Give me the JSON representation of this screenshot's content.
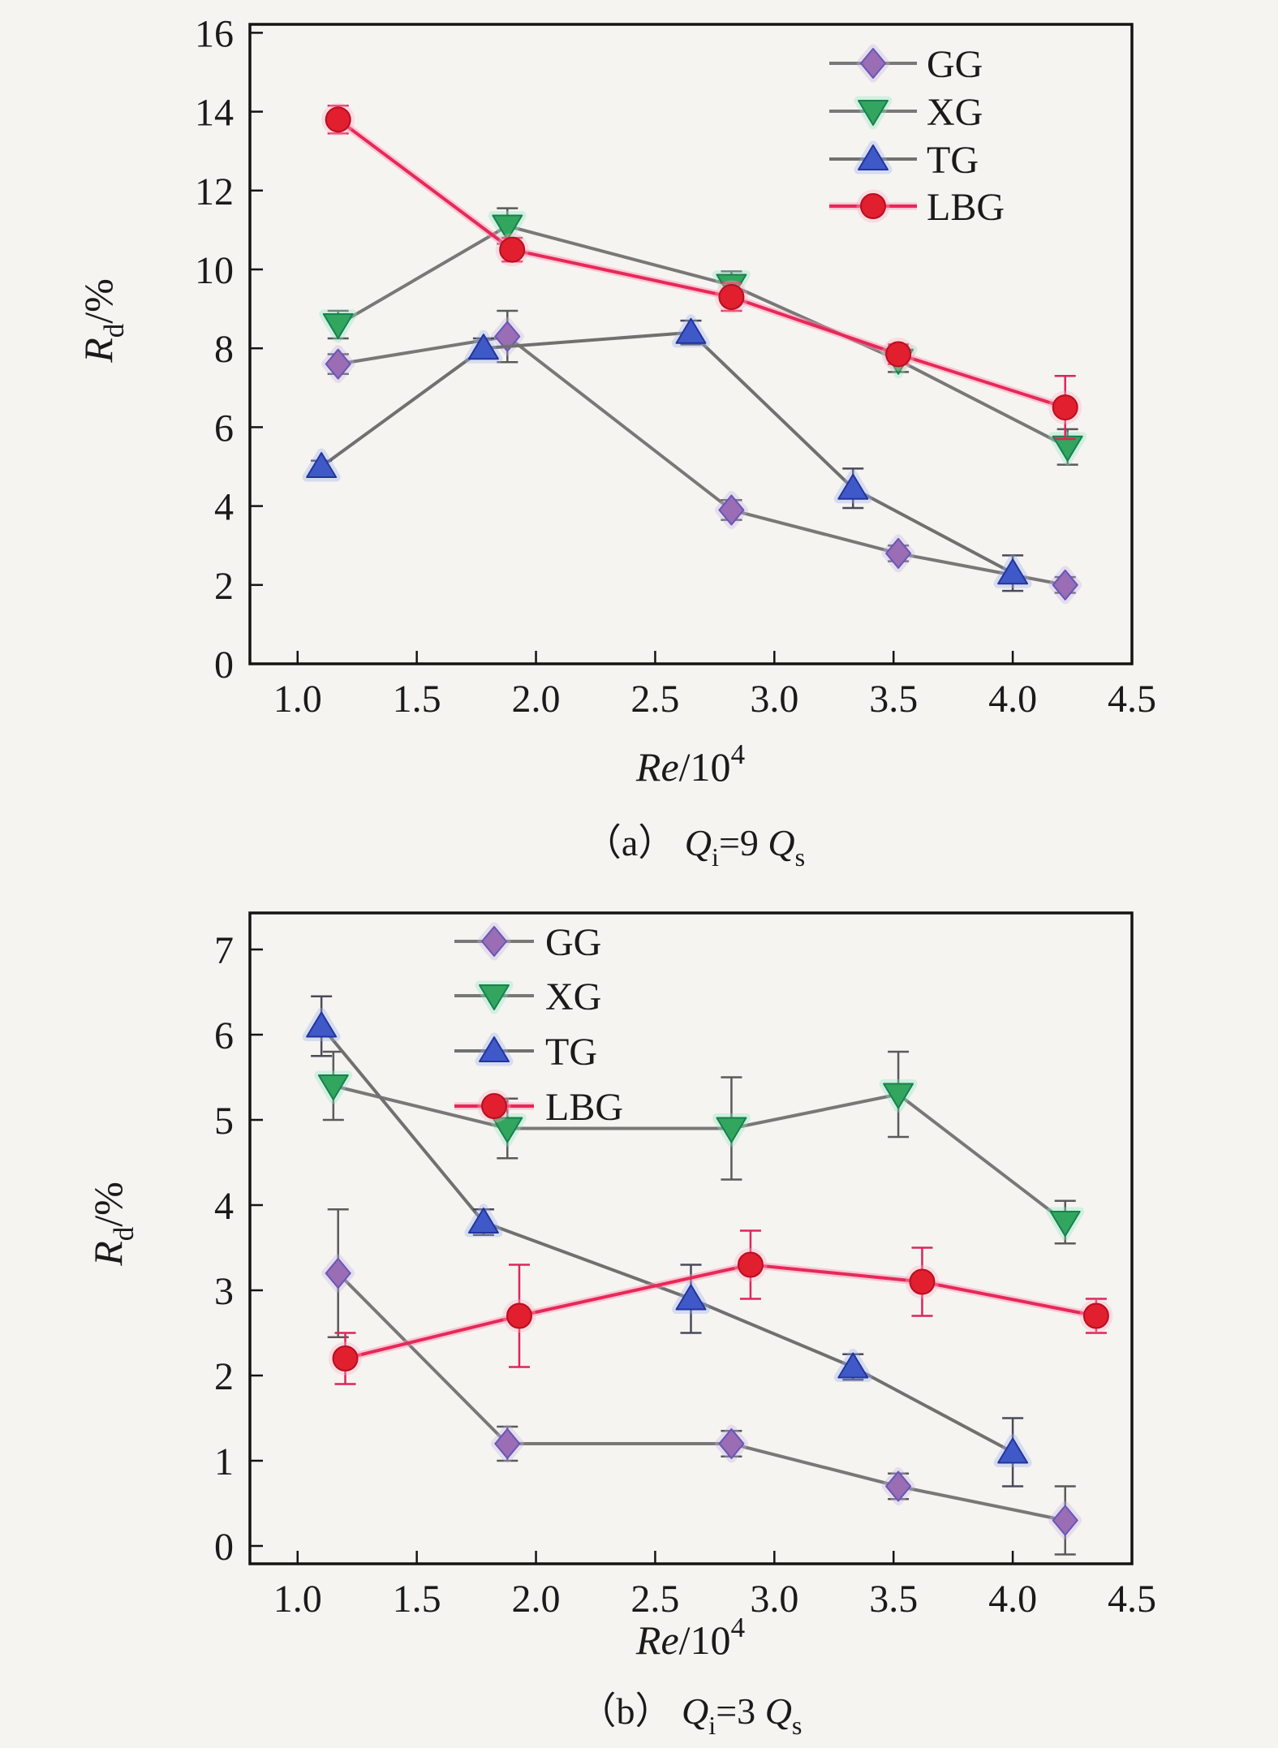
{
  "page": {
    "background": "#f5f4f1",
    "frame_color": "#141414",
    "tick_color": "#141414",
    "text_color": "#1a1a1a"
  },
  "chart_data": [
    {
      "id": "a",
      "type": "line",
      "caption_text": "（a） Qi=9 Qs",
      "caption_parts": [
        {
          "text": "（a） "
        },
        {
          "text": "Q",
          "italic": true
        },
        {
          "text": "i",
          "sub": true
        },
        {
          "text": "=9 "
        },
        {
          "text": "Q",
          "italic": true
        },
        {
          "text": "s",
          "sub": true
        }
      ],
      "xlabel": "Re/10⁴",
      "xlabel_parts": [
        {
          "text": "Re",
          "italic": true
        },
        {
          "text": "/10"
        },
        {
          "text": "4",
          "sup": true
        }
      ],
      "ylabel": "Rd/%",
      "ylabel_parts": [
        {
          "text": "R",
          "italic": true
        },
        {
          "text": "d",
          "sub": true
        },
        {
          "text": "/%"
        }
      ],
      "xlim": [
        0.8,
        4.5
      ],
      "ylim": [
        0,
        16.2
      ],
      "x_ticks": [
        "1.0",
        "1.5",
        "2.0",
        "2.5",
        "3.0",
        "3.5",
        "4.0",
        "4.5"
      ],
      "y_ticks": [
        "0",
        "2",
        "4",
        "6",
        "8",
        "10",
        "12",
        "14",
        "16"
      ],
      "grid": false,
      "legend_position": "top-right",
      "series": [
        {
          "name": "GG",
          "marker": "diamond",
          "marker_color": "#9a6db4",
          "edge_color": "#6657b8",
          "glow_color": "#c9b3e0",
          "line_color": "#787878",
          "err_color": "#5a5a5a",
          "x": [
            1.17,
            1.88,
            2.82,
            3.52,
            4.22
          ],
          "y": [
            7.6,
            8.3,
            3.9,
            2.8,
            2.0
          ],
          "yerr": [
            0.25,
            0.65,
            0.25,
            0.2,
            0.2
          ]
        },
        {
          "name": "XG",
          "marker": "triangle-down",
          "marker_color": "#32a65e",
          "edge_color": "#16814e",
          "glow_color": "#8ee6c0",
          "line_color": "#787878",
          "err_color": "#5a5a5a",
          "x": [
            1.17,
            1.88,
            2.82,
            3.52,
            4.23
          ],
          "y": [
            8.6,
            11.1,
            9.6,
            7.7,
            5.5
          ],
          "yerr": [
            0.35,
            0.45,
            0.35,
            0.3,
            0.45
          ]
        },
        {
          "name": "TG",
          "marker": "triangle-up",
          "marker_color": "#3f5ac8",
          "edge_color": "#23349c",
          "glow_color": "#9fb0ea",
          "line_color": "#707070",
          "err_color": "#4a4a5a",
          "x": [
            1.1,
            1.78,
            2.65,
            3.33,
            4.0
          ],
          "y": [
            5.0,
            8.0,
            8.4,
            4.45,
            2.3
          ],
          "yerr": [
            0.15,
            0.25,
            0.3,
            0.5,
            0.45
          ]
        },
        {
          "name": "LBG",
          "marker": "circle",
          "marker_color": "#e11f2e",
          "edge_color": "#b80e22",
          "glow_color": "#ffb0c4",
          "line_color": "#e62958",
          "line_glow": "#ff8fb0",
          "err_color": "#e0245a",
          "x": [
            1.17,
            1.9,
            2.82,
            3.52,
            4.22
          ],
          "y": [
            13.8,
            10.5,
            9.3,
            7.85,
            6.5
          ],
          "yerr": [
            0.35,
            0.3,
            0.35,
            0.25,
            0.8
          ]
        }
      ]
    },
    {
      "id": "b",
      "type": "line",
      "caption_text": "（b） Qi=3 Qs",
      "caption_parts": [
        {
          "text": "（b） "
        },
        {
          "text": "Q",
          "italic": true
        },
        {
          "text": "i",
          "sub": true
        },
        {
          "text": "=3 "
        },
        {
          "text": "Q",
          "italic": true
        },
        {
          "text": "s",
          "sub": true
        }
      ],
      "xlabel": "Re/10⁴",
      "xlabel_parts": [
        {
          "text": "Re",
          "italic": true
        },
        {
          "text": "/10"
        },
        {
          "text": "4",
          "sup": true
        }
      ],
      "ylabel": "Rd/%",
      "ylabel_parts": [
        {
          "text": "R",
          "italic": true
        },
        {
          "text": "d",
          "sub": true
        },
        {
          "text": "/%"
        }
      ],
      "xlim": [
        0.8,
        4.5
      ],
      "ylim": [
        -0.2,
        7.4
      ],
      "x_ticks": [
        "1.0",
        "1.5",
        "2.0",
        "2.5",
        "3.0",
        "3.5",
        "4.0",
        "4.5"
      ],
      "y_ticks": [
        "0",
        "1",
        "2",
        "3",
        "4",
        "5",
        "6",
        "7"
      ],
      "grid": false,
      "legend_position": "top-center-left",
      "series": [
        {
          "name": "GG",
          "marker": "diamond",
          "marker_color": "#9a6db4",
          "edge_color": "#6657b8",
          "glow_color": "#c9b3e0",
          "line_color": "#787878",
          "err_color": "#5a5a5a",
          "x": [
            1.17,
            1.88,
            2.82,
            3.52,
            4.22
          ],
          "y": [
            3.2,
            1.2,
            1.2,
            0.7,
            0.3
          ],
          "yerr": [
            0.75,
            0.2,
            0.15,
            0.15,
            0.4
          ]
        },
        {
          "name": "XG",
          "marker": "triangle-down",
          "marker_color": "#32a65e",
          "edge_color": "#16814e",
          "glow_color": "#8ee6c0",
          "line_color": "#787878",
          "err_color": "#5a5a5a",
          "x": [
            1.15,
            1.88,
            2.82,
            3.52,
            4.22
          ],
          "y": [
            5.4,
            4.9,
            4.9,
            5.3,
            3.8
          ],
          "yerr": [
            0.4,
            0.35,
            0.6,
            0.5,
            0.25
          ]
        },
        {
          "name": "TG",
          "marker": "triangle-up",
          "marker_color": "#3f5ac8",
          "edge_color": "#23349c",
          "glow_color": "#9fb0ea",
          "line_color": "#707070",
          "err_color": "#4a4a5a",
          "x": [
            1.1,
            1.78,
            2.65,
            3.33,
            4.0
          ],
          "y": [
            6.1,
            3.8,
            2.9,
            2.1,
            1.1
          ],
          "yerr": [
            0.35,
            0.15,
            0.4,
            0.15,
            0.4
          ]
        },
        {
          "name": "LBG",
          "marker": "circle",
          "marker_color": "#e11f2e",
          "edge_color": "#b80e22",
          "glow_color": "#ffb0c4",
          "line_color": "#e62958",
          "line_glow": "#ff8fb0",
          "err_color": "#e0245a",
          "x": [
            1.2,
            1.93,
            2.9,
            3.62,
            4.35
          ],
          "y": [
            2.2,
            2.7,
            3.3,
            3.1,
            2.7
          ],
          "yerr": [
            0.3,
            0.6,
            0.4,
            0.4,
            0.2
          ]
        }
      ]
    }
  ]
}
